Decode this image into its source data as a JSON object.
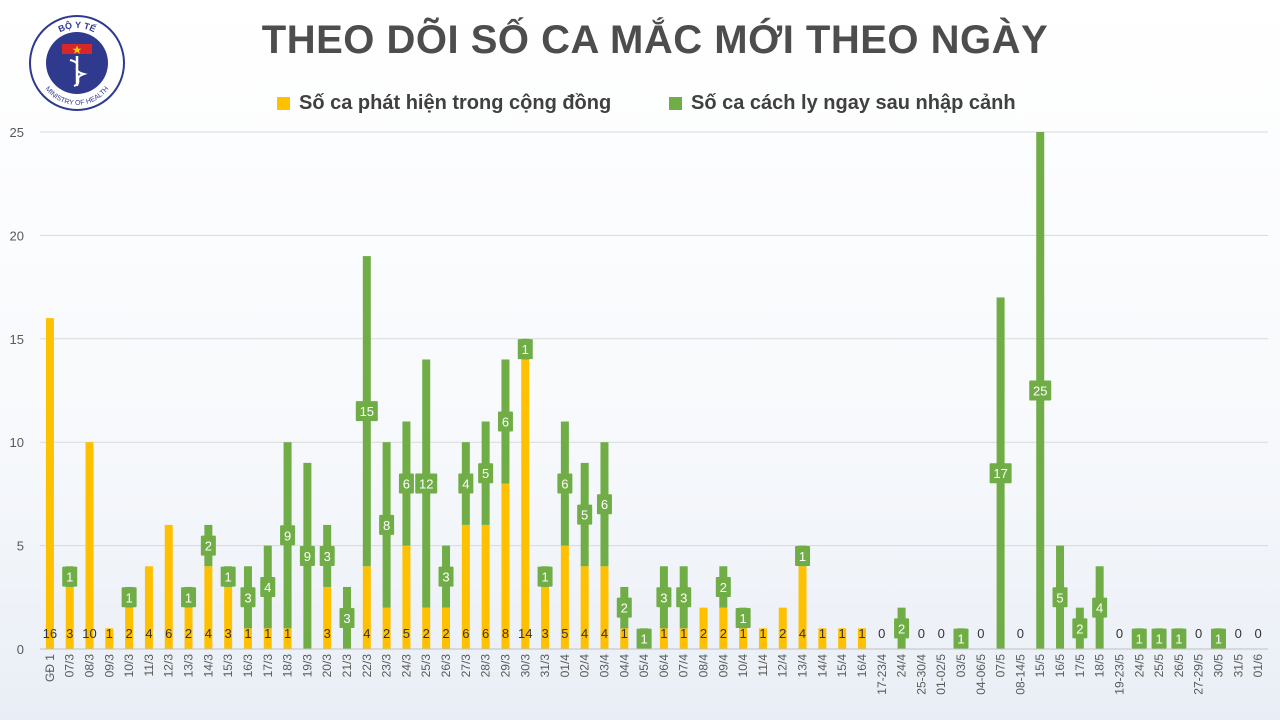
{
  "logo": {
    "top_text": "BỘ Y TẾ",
    "bottom_text": "MINISTRY OF HEALTH"
  },
  "title": "THEO DÕI SỐ CA MẮC MỚI THEO NGÀY",
  "colors": {
    "community": "#FFC000",
    "quarantine": "#70AD47",
    "grid": "#d9d9d9",
    "axis_text": "#595959"
  },
  "chart_data": {
    "type": "bar",
    "stacked": true,
    "legend_position": "top",
    "grid": true,
    "ylim": [
      0,
      25
    ],
    "yticks": [
      "0",
      "5",
      "10",
      "15",
      "20",
      "25"
    ],
    "categories": [
      "GĐ 1",
      "07/3",
      "08/3",
      "09/3",
      "10/3",
      "11/3",
      "12/3",
      "13/3",
      "14/3",
      "15/3",
      "16/3",
      "17/3",
      "18/3",
      "19/3",
      "20/3",
      "21/3",
      "22/3",
      "23/3",
      "24/3",
      "25/3",
      "26/3",
      "27/3",
      "28/3",
      "29/3",
      "30/3",
      "31/3",
      "01/4",
      "02/4",
      "03/4",
      "04/4",
      "05/4",
      "06/4",
      "07/4",
      "08/4",
      "09/4",
      "10/4",
      "11/4",
      "12/4",
      "13/4",
      "14/4",
      "15/4",
      "16/4",
      "17-23/4",
      "24/4",
      "25-30/4",
      "01-02/5",
      "03/5",
      "04-06/5",
      "07/5",
      "08-14/5",
      "15/5",
      "16/5",
      "17/5",
      "18/5",
      "19-23/5",
      "24/5",
      "25/5",
      "26/5",
      "27-29/5",
      "30/5",
      "31/5",
      "01/6"
    ],
    "series": [
      {
        "name": "Số ca phát hiện trong cộng đồng",
        "color": "#FFC000",
        "values": [
          16,
          3,
          10,
          1,
          2,
          4,
          6,
          2,
          4,
          3,
          1,
          1,
          1,
          0,
          3,
          0,
          4,
          2,
          5,
          2,
          2,
          6,
          6,
          8,
          14,
          3,
          5,
          4,
          4,
          1,
          0,
          1,
          1,
          2,
          2,
          1,
          1,
          2,
          4,
          1,
          1,
          1,
          0,
          0,
          0,
          0,
          0,
          0,
          0,
          0,
          0,
          0,
          0,
          0,
          0,
          0,
          0,
          0,
          0,
          0,
          0,
          0
        ],
        "labels": [
          "16",
          "3",
          "10",
          "1",
          "2",
          "4",
          "6",
          "2",
          "4",
          "3",
          "1",
          "1",
          "1",
          "",
          "3",
          "",
          "4",
          "2",
          "5",
          "2",
          "2",
          "6",
          "6",
          "8",
          "14",
          "3",
          "5",
          "4",
          "4",
          "1",
          "",
          "1",
          "1",
          "2",
          "2",
          "1",
          "1",
          "2",
          "4",
          "1",
          "1",
          "1",
          "0",
          "",
          "0",
          "0",
          "",
          "0",
          "",
          "0",
          "",
          "",
          "",
          "",
          "0",
          "",
          "",
          "",
          "0",
          "",
          "0",
          "0"
        ]
      },
      {
        "name": "Số ca cách ly ngay sau nhập cảnh",
        "color": "#70AD47",
        "values": [
          0,
          1,
          0,
          0,
          1,
          0,
          0,
          1,
          2,
          1,
          3,
          4,
          9,
          9,
          3,
          3,
          15,
          8,
          6,
          12,
          3,
          4,
          5,
          6,
          1,
          1,
          6,
          5,
          6,
          2,
          1,
          3,
          3,
          0,
          2,
          1,
          0,
          0,
          1,
          0,
          0,
          0,
          0,
          2,
          0,
          0,
          1,
          0,
          17,
          0,
          25,
          5,
          2,
          4,
          0,
          1,
          1,
          1,
          0,
          1,
          0,
          0
        ],
        "labels": [
          "",
          "1",
          "",
          "",
          "1",
          "",
          "",
          "1",
          "2",
          "1",
          "3",
          "4",
          "9",
          "9",
          "3",
          "3",
          "15",
          "8",
          "6",
          "12",
          "3",
          "4",
          "5",
          "6",
          "1",
          "1",
          "6",
          "5",
          "6",
          "2",
          "1",
          "3",
          "3",
          "",
          "2",
          "1",
          "",
          "",
          "1",
          "",
          "",
          "",
          "",
          "2",
          "",
          "",
          "1",
          "",
          "17",
          "",
          "25",
          "5",
          "2",
          "4",
          "",
          "1",
          "1",
          "1",
          "",
          "1",
          "",
          ""
        ]
      }
    ]
  }
}
